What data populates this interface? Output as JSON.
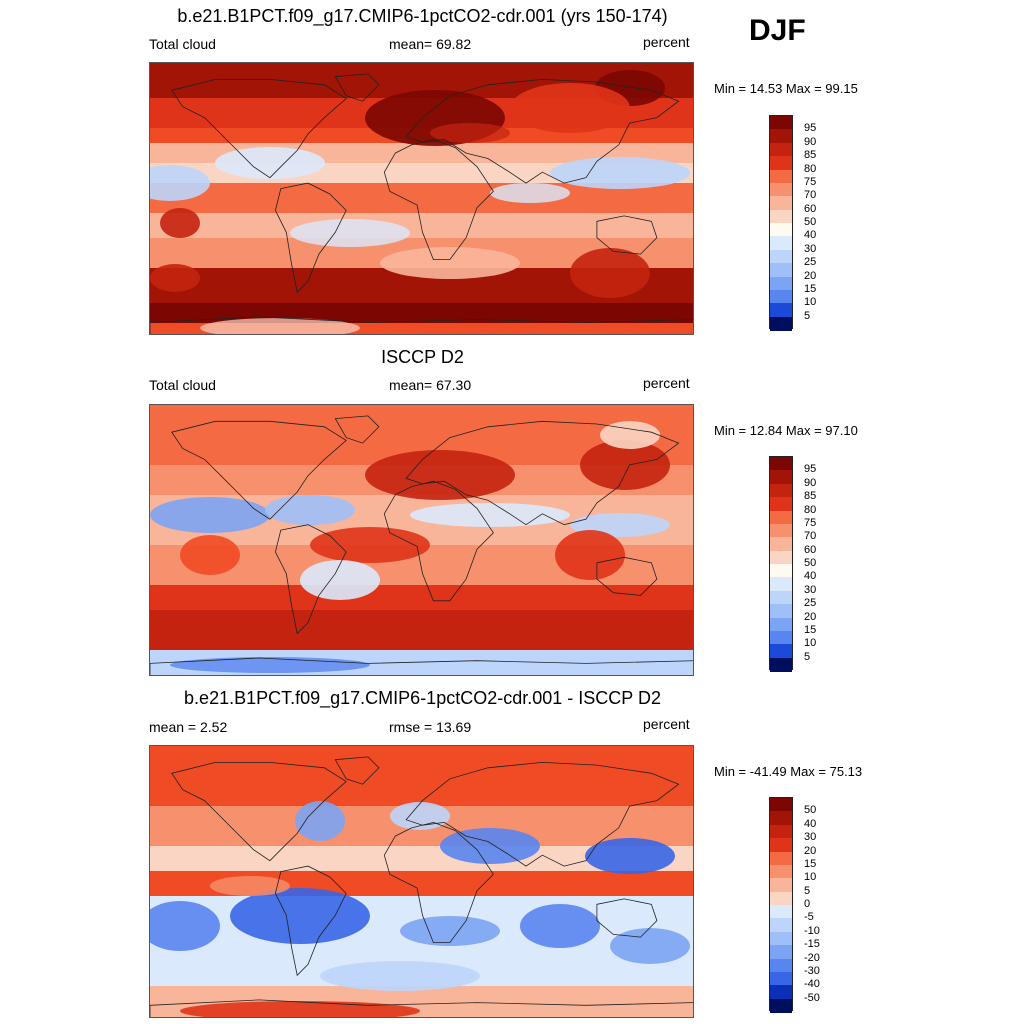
{
  "season": "DJF",
  "colors": {
    "pos": [
      "#fbd5c4",
      "#f9b59a",
      "#f7906c",
      "#f46a43",
      "#ef4b25",
      "#e0341a",
      "#c42310",
      "#a11406",
      "#7c0702"
    ],
    "neg": [
      "#dbe9fc",
      "#bdd5fb",
      "#9ebff7",
      "#7ca4f4",
      "#5985ef",
      "#3866e6",
      "#1c4ad8",
      "#0b2fb6",
      "#061c88",
      "#000e5e"
    ],
    "mid": "#fffaf0"
  },
  "panels": [
    {
      "title": "b.e21.B1PCT.f09_g17.CMIP6-1pctCO2-cdr.001 (yrs 150-174)",
      "left_label": "Total cloud",
      "center_label": "mean=  69.82",
      "right_label": "percent",
      "minmax": "Min =  14.53 Max =  99.15",
      "colorbar_labels": [
        "95",
        "90",
        "85",
        "80",
        "75",
        "70",
        "60",
        "50",
        "40",
        "30",
        "25",
        "20",
        "15",
        "10",
        "5"
      ]
    },
    {
      "title": "ISCCP D2",
      "left_label": "Total cloud",
      "center_label": "mean=  67.30",
      "right_label": "percent",
      "minmax": "Min =  12.84 Max =  97.10",
      "colorbar_labels": [
        "95",
        "90",
        "85",
        "80",
        "75",
        "70",
        "60",
        "50",
        "40",
        "30",
        "25",
        "20",
        "15",
        "10",
        "5"
      ]
    },
    {
      "title": "b.e21.B1PCT.f09_g17.CMIP6-1pctCO2-cdr.001 - ISCCP D2",
      "left_label": "mean =   2.52",
      "center_label": "rmse =  13.69",
      "right_label": "percent",
      "minmax": "Min = -41.49 Max =  75.13",
      "colorbar_labels": [
        "50",
        "40",
        "30",
        "20",
        "15",
        "10",
        "5",
        "0",
        "-5",
        "-10",
        "-15",
        "-20",
        "-30",
        "-40",
        "-50"
      ]
    }
  ],
  "chart_data": [
    {
      "type": "heatmap",
      "title": "b.e21.B1PCT.f09_g17.CMIP6-1pctCO2-cdr.001 (yrs 150-174)",
      "variable": "Total cloud",
      "units": "percent",
      "mean": 69.82,
      "min": 14.53,
      "max": 99.15,
      "levels": [
        5,
        10,
        15,
        20,
        25,
        30,
        40,
        50,
        60,
        70,
        75,
        80,
        85,
        90,
        95
      ]
    },
    {
      "type": "heatmap",
      "title": "ISCCP D2",
      "variable": "Total cloud",
      "units": "percent",
      "mean": 67.3,
      "min": 12.84,
      "max": 97.1,
      "levels": [
        5,
        10,
        15,
        20,
        25,
        30,
        40,
        50,
        60,
        70,
        75,
        80,
        85,
        90,
        95
      ]
    },
    {
      "type": "heatmap",
      "title": "b.e21.B1PCT.f09_g17.CMIP6-1pctCO2-cdr.001 - ISCCP D2",
      "units": "percent",
      "mean": 2.52,
      "rmse": 13.69,
      "min": -41.49,
      "max": 75.13,
      "levels": [
        -50,
        -40,
        -30,
        -20,
        -15,
        -10,
        -5,
        0,
        5,
        10,
        15,
        20,
        30,
        40,
        50
      ]
    }
  ]
}
